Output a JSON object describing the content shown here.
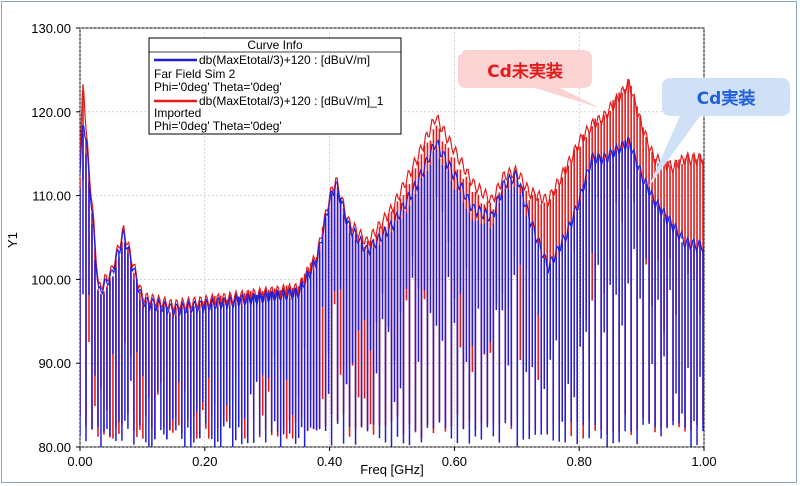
{
  "chart_data": {
    "type": "line",
    "xlabel": "Freq [GHz]",
    "ylabel": "Y1",
    "xlim": [
      0.0,
      1.0
    ],
    "ylim": [
      80.0,
      130.0
    ],
    "x_ticks": [
      "0.00",
      "0.20",
      "0.40",
      "0.60",
      "0.80",
      "1.00"
    ],
    "y_ticks": [
      "80.00",
      "90.00",
      "100.00",
      "110.00",
      "120.00",
      "130.00"
    ],
    "grid": true,
    "legend": {
      "title": "Curve Info",
      "placement": "top-left",
      "entries": [
        {
          "lines": [
            "db(MaxEtotal/3)+120 : [dBuV/m]",
            "Far Field Sim 2",
            "Phi='0deg' Theta='0deg'"
          ],
          "color": "#1f1fd8"
        },
        {
          "lines": [
            "db(MaxEtotal/3)+120 : [dBuV/m]_1",
            "Imported",
            "Phi='0deg' Theta='0deg'"
          ],
          "color": "#e41b1b"
        }
      ]
    },
    "callouts": [
      {
        "text": "Cd未実装",
        "fill": "#fbd3d3",
        "color": "#e41b1b"
      },
      {
        "text": "Cd実装",
        "fill": "#cfe0f7",
        "color": "#1f5fd8"
      }
    ],
    "envelope_x": [
      0.0,
      0.005,
      0.01,
      0.02,
      0.03,
      0.05,
      0.07,
      0.1,
      0.15,
      0.2,
      0.25,
      0.3,
      0.35,
      0.38,
      0.4,
      0.41,
      0.43,
      0.46,
      0.5,
      0.54,
      0.57,
      0.6,
      0.63,
      0.66,
      0.68,
      0.7,
      0.72,
      0.75,
      0.78,
      0.8,
      0.82,
      0.84,
      0.86,
      0.88,
      0.9,
      0.92,
      0.95,
      0.97,
      1.0
    ],
    "series": [
      {
        "name": "db(MaxEtotal/3)+120 : [dBuV/m]",
        "color": "#1f1fd8",
        "upper": [
          113,
          120,
          117,
          108,
          99,
          101,
          106,
          98,
          97,
          97.5,
          98,
          98.5,
          99,
          103,
          110,
          112,
          107,
          104,
          107,
          112,
          117,
          113,
          109,
          108,
          112,
          113,
          108,
          102,
          106,
          110,
          115,
          115,
          116,
          117,
          113,
          110,
          107,
          105,
          104.5
        ],
        "lower": [
          81,
          80,
          80,
          80,
          80,
          80,
          80,
          80,
          80,
          80,
          80,
          80,
          80,
          80,
          80,
          80,
          80,
          80,
          80,
          80,
          80,
          80,
          80,
          80,
          80,
          80,
          80,
          80,
          80,
          80,
          80,
          80,
          80,
          80,
          80,
          80,
          80,
          80,
          80
        ]
      },
      {
        "name": "db(MaxEtotal/3)+120 : [dBuV/m]_1",
        "color": "#e41b1b",
        "upper": [
          114,
          125,
          118,
          109,
          99.5,
          101.5,
          106.5,
          98.5,
          97.5,
          98,
          98.5,
          99,
          99.5,
          103.5,
          110.5,
          112.5,
          107.5,
          105,
          109,
          115,
          120,
          116,
          112,
          110,
          113,
          113.5,
          111,
          110,
          114,
          117,
          119,
          120,
          122,
          124,
          119,
          115,
          114,
          115,
          115
        ],
        "lower": [
          82,
          81,
          81,
          81,
          81,
          81,
          81,
          81,
          81,
          81,
          81,
          81,
          81,
          81,
          81,
          81,
          81,
          81,
          81,
          81,
          81,
          81,
          81,
          81,
          81,
          81,
          81,
          81,
          81,
          81,
          81,
          81,
          81,
          81,
          81,
          81,
          81,
          81,
          81
        ]
      }
    ]
  }
}
